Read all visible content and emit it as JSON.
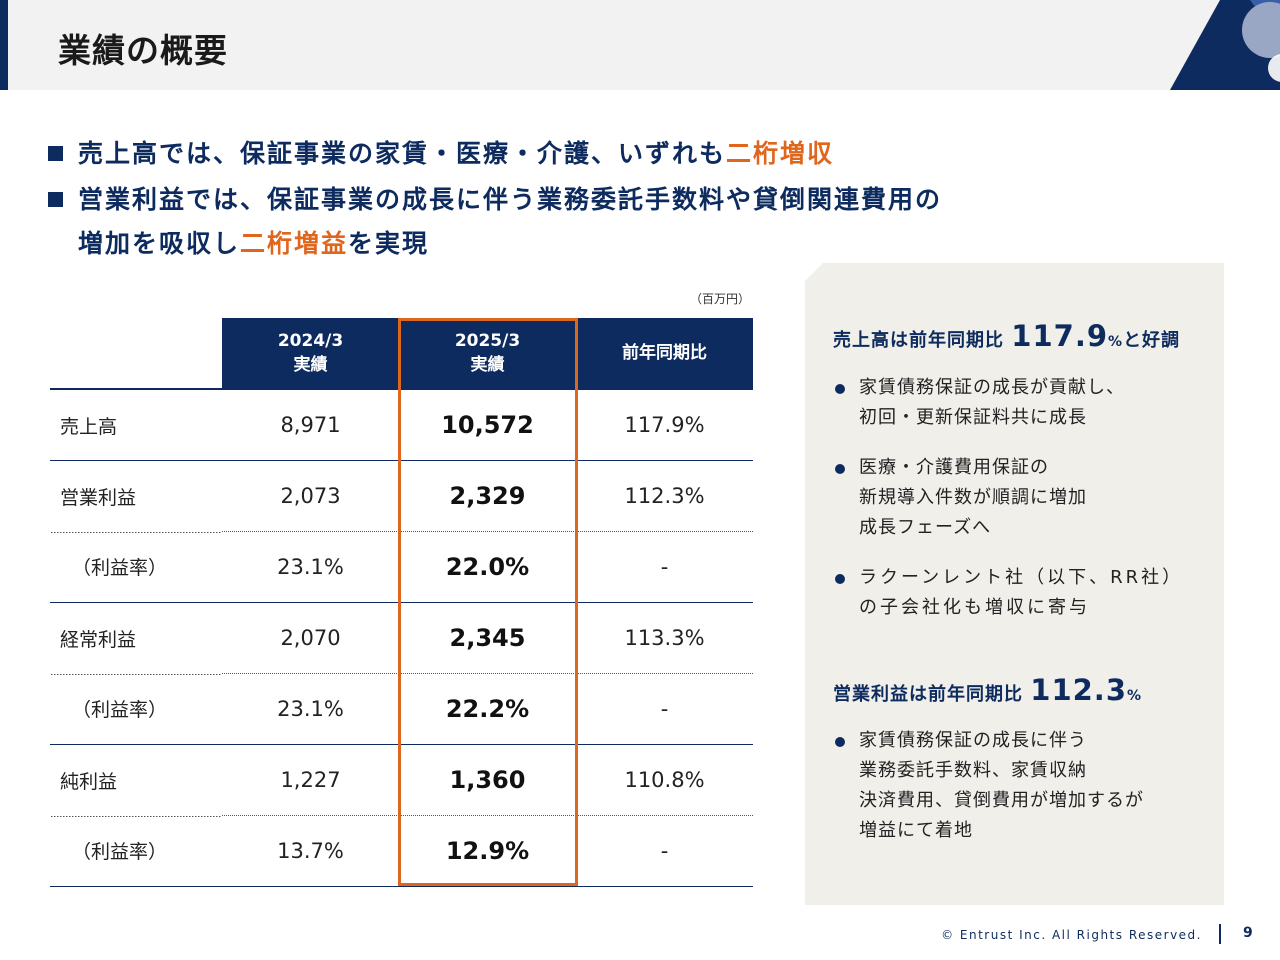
{
  "header": {
    "title": "業績の概要"
  },
  "bullets": [
    {
      "parts": [
        "売上高では、保証事業の家賃・医療・介護、いずれも",
        "二桁増収",
        ""
      ]
    },
    {
      "line1": "営業利益では、保証事業の成長に伴う業務委託手数料や貸倒関連費用の",
      "line2_pre": "増加を吸収し",
      "line2_hl": "二桁増益",
      "line2_post": "を実現"
    }
  ],
  "table": {
    "unit": "（百万円）",
    "headers": [
      {
        "l1": "2024/3",
        "l2": "実績"
      },
      {
        "l1": "2025/3",
        "l2": "実績"
      },
      {
        "l1": "前年同期比",
        "l2": ""
      }
    ],
    "rows": [
      {
        "label": "売上高",
        "fy24": "8,971",
        "fy25": "10,572",
        "yoy": "117.9%"
      },
      {
        "label": "営業利益",
        "fy24": "2,073",
        "fy25": "2,329",
        "yoy": "112.3%"
      },
      {
        "label": "（利益率）",
        "fy24": "23.1%",
        "fy25": "22.0%",
        "yoy": "-"
      },
      {
        "label": "経常利益",
        "fy24": "2,070",
        "fy25": "2,345",
        "yoy": "113.3%"
      },
      {
        "label": "（利益率）",
        "fy24": "23.1%",
        "fy25": "22.2%",
        "yoy": "-"
      },
      {
        "label": "純利益",
        "fy24": "1,227",
        "fy25": "1,360",
        "yoy": "110.8%"
      },
      {
        "label": "（利益率）",
        "fy24": "13.7%",
        "fy25": "12.9%",
        "yoy": "-"
      }
    ]
  },
  "panel": {
    "sales": {
      "pre": "売上高は前年同期比 ",
      "value": "117.9",
      "unit": "%",
      "post": "と好調",
      "items": [
        [
          "家賃債務保証の成長が貢献し、",
          "初回・更新保証料共に成長"
        ],
        [
          "医療・介護費用保証の",
          "新規導入件数が順調に増加",
          "成長フェーズへ"
        ],
        [
          "ラクーンレント社（以下、RR社）",
          "の子会社化も増収に寄与"
        ]
      ]
    },
    "op": {
      "pre": "営業利益は前年同期比 ",
      "value": "112.3",
      "unit": "%",
      "items": [
        [
          "家賃債務保証の成長に伴う",
          "業務委託手数料、家賃収納",
          "決済費用、貸倒費用が増加するが",
          "増益にて着地"
        ]
      ]
    }
  },
  "footer": {
    "copyright": "© Entrust Inc. All Rights Reserved.",
    "page": "9"
  },
  "colors": {
    "navy": "#0d2b5e",
    "orange": "#e0651d",
    "panel_bg": "#f1efea"
  }
}
